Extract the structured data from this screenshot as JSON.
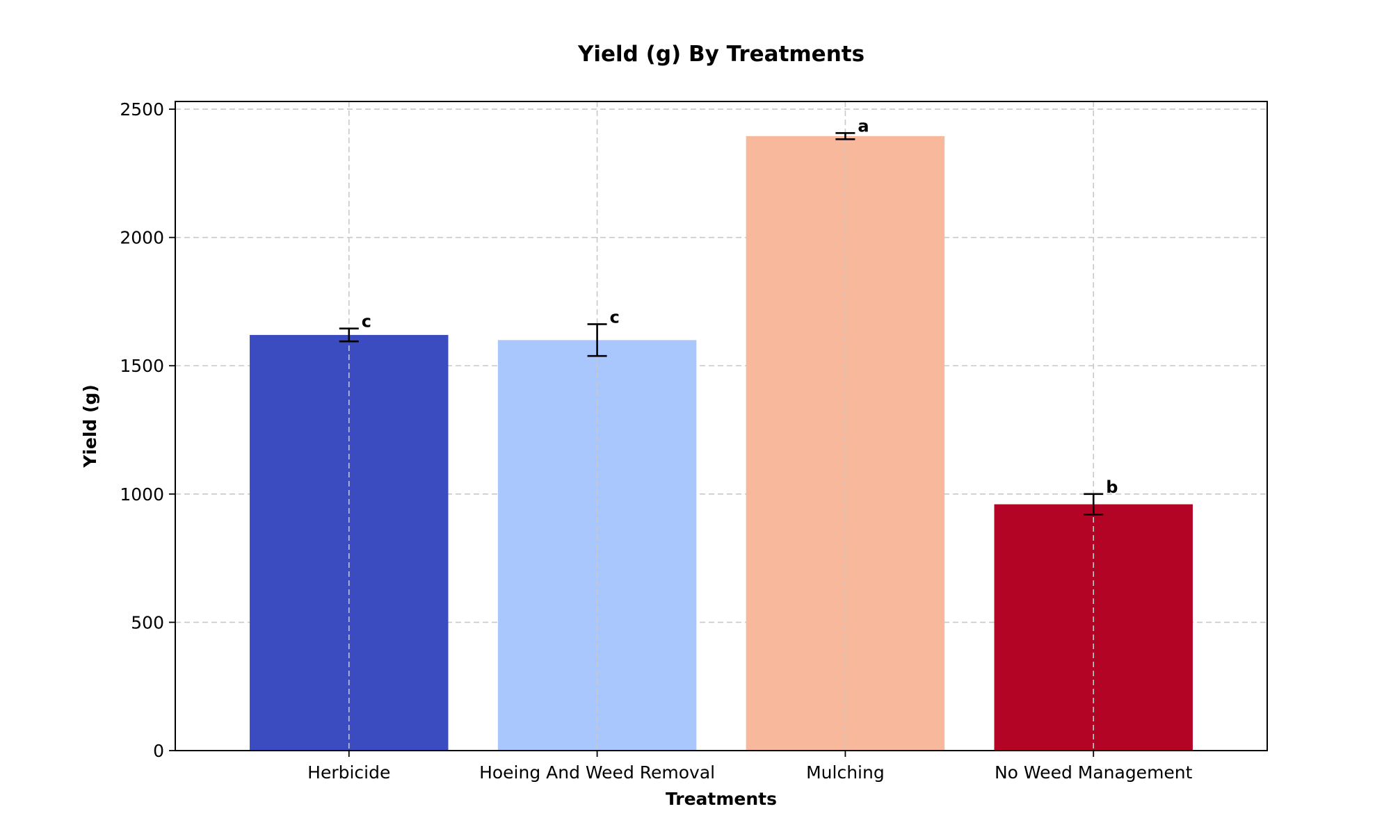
{
  "chart_data": {
    "type": "bar",
    "title": "Yield (g) By Treatments",
    "xlabel": "Treatments",
    "ylabel": "Yield (g)",
    "categories": [
      "Herbicide",
      "Hoeing And Weed Removal",
      "Mulching",
      "No Weed Management"
    ],
    "values": [
      1620,
      1600,
      2395,
      960
    ],
    "errors": [
      25,
      62,
      12,
      40
    ],
    "significance_letters": [
      "c",
      "c",
      "a",
      "b"
    ],
    "colors": [
      "#3b4cc0",
      "#aac7fd",
      "#f7b89c",
      "#b40426"
    ],
    "ylim": [
      0,
      2530
    ],
    "yticks": [
      0,
      500,
      1000,
      1500,
      2000,
      2500
    ],
    "grid": true
  }
}
